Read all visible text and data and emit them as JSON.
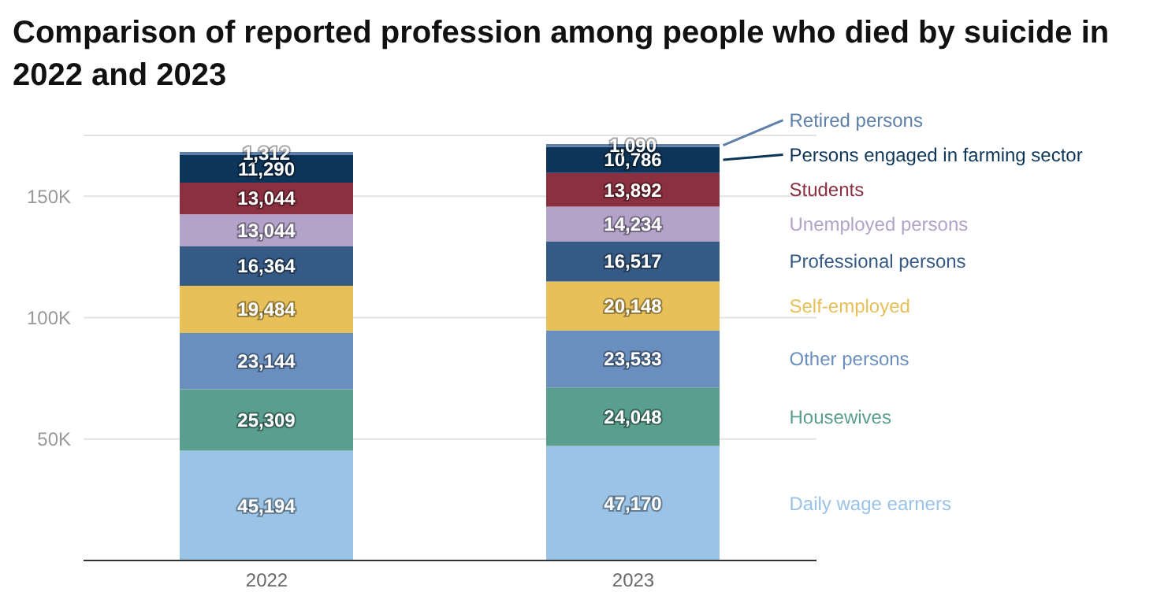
{
  "chart_data": {
    "type": "bar",
    "title": "Comparison of reported profession among people who died by suicide in 2022 and 2023",
    "categories": [
      "2022",
      "2023"
    ],
    "stacked": true,
    "legend": "right",
    "grid": "y",
    "ylim": [
      0,
      175000
    ],
    "yticks": [
      {
        "value": 50000,
        "label": "50K"
      },
      {
        "value": 100000,
        "label": "100K"
      },
      {
        "value": 150000,
        "label": "150K"
      }
    ],
    "series": [
      {
        "name": "Daily wage earners",
        "color": "#9ac3e6",
        "values": [
          45194,
          47170
        ],
        "value_labels": [
          "45,194",
          "47,170"
        ]
      },
      {
        "name": "Housewives",
        "color": "#5a9e8e",
        "values": [
          25309,
          24048
        ],
        "value_labels": [
          "25,309",
          "24,048"
        ]
      },
      {
        "name": "Other persons",
        "color": "#6a8fbf",
        "values": [
          23144,
          23533
        ],
        "value_labels": [
          "23,144",
          "23,533"
        ]
      },
      {
        "name": "Self-employed",
        "color": "#e8c05a",
        "values": [
          19484,
          20148
        ],
        "value_labels": [
          "19,484",
          "20,148"
        ]
      },
      {
        "name": "Professional persons",
        "color": "#355a85",
        "values": [
          16364,
          16517
        ],
        "value_labels": [
          "16,364",
          "16,517"
        ]
      },
      {
        "name": "Unemployed persons",
        "color": "#b3a3c8",
        "values": [
          13044,
          14234
        ],
        "value_labels": [
          "13,044",
          "14,234"
        ]
      },
      {
        "name": "Students",
        "color": "#8b3040",
        "values": [
          13044,
          13892
        ],
        "value_labels": [
          "13,044",
          "13,892"
        ]
      },
      {
        "name": "Persons engaged in farming sector",
        "color": "#0d3559",
        "values": [
          11290,
          10786
        ],
        "value_labels": [
          "11,290",
          "10,786"
        ]
      },
      {
        "name": "Retired persons",
        "color": "#5d7fa8",
        "values": [
          1312,
          1090
        ],
        "value_labels": [
          "1,312",
          "1,090"
        ]
      }
    ]
  }
}
